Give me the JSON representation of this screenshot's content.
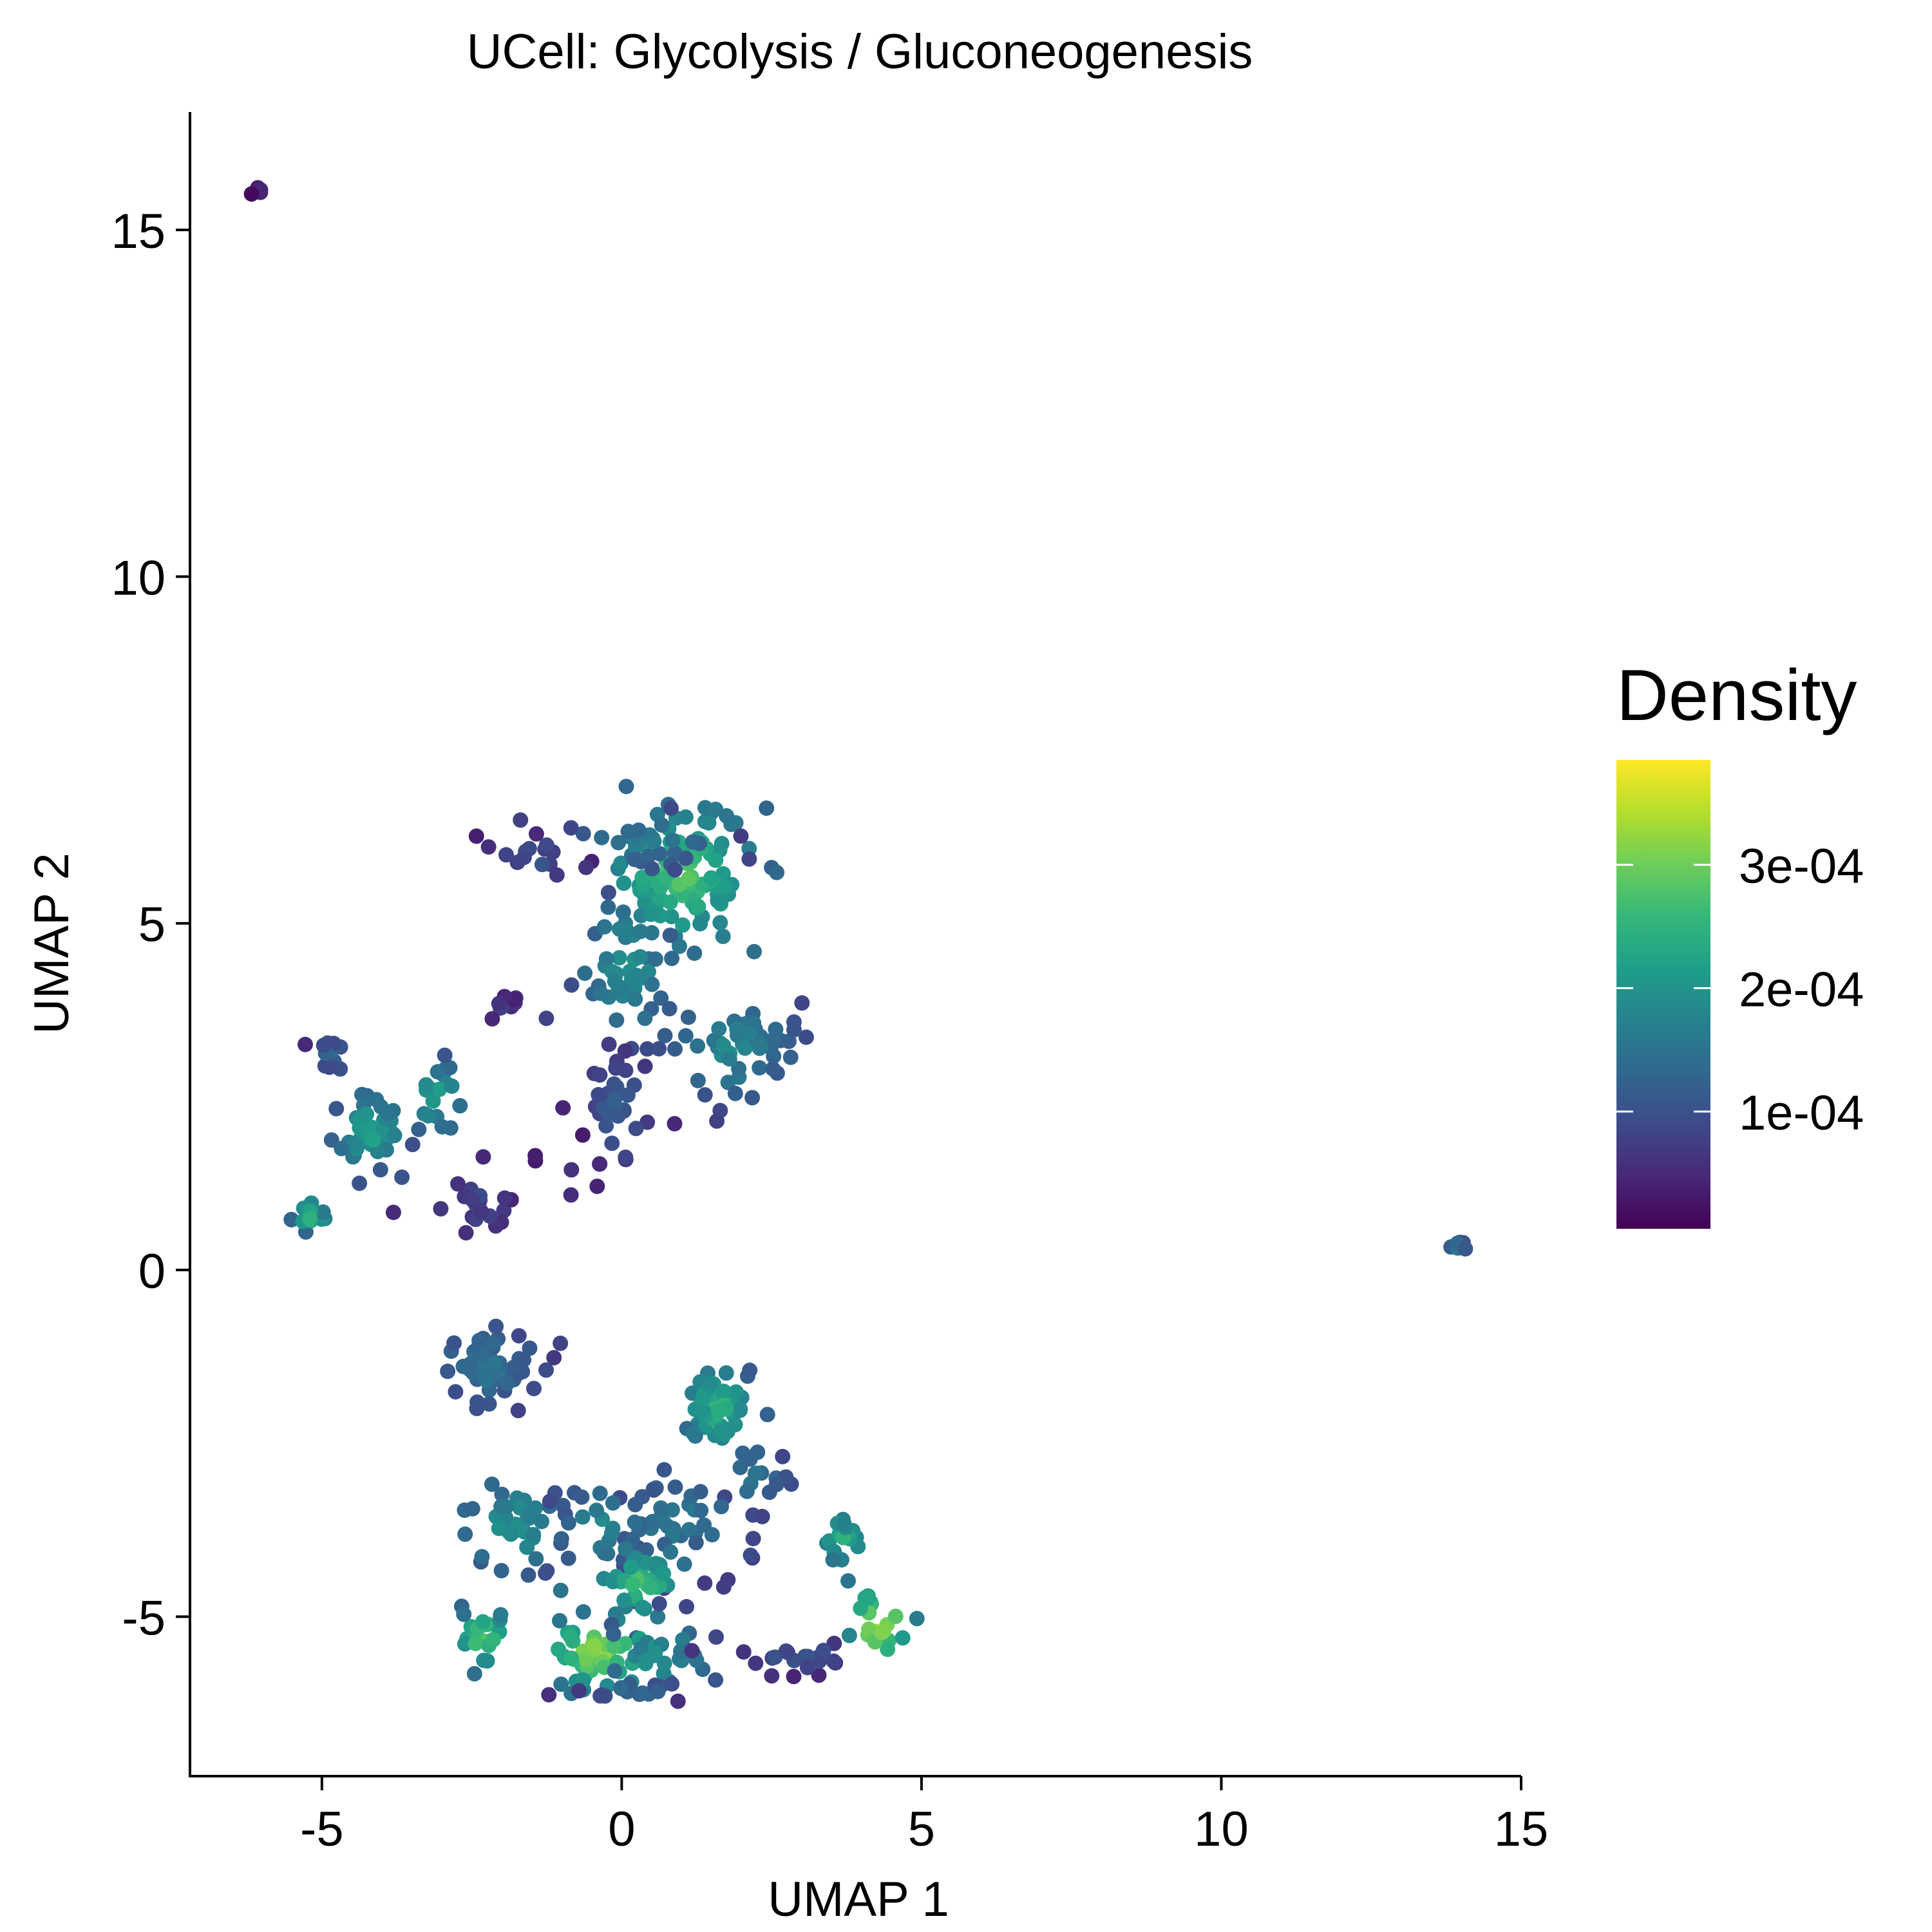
{
  "chart_data": {
    "type": "scatter",
    "title": "UCell: Glycolysis / Gluconeogenesis",
    "xlabel": "UMAP 1",
    "ylabel": "UMAP 2",
    "xlim": [
      -7.2,
      15
    ],
    "ylim": [
      -7.3,
      16.7
    ],
    "x_ticks": [
      {
        "value": -5,
        "label": "-5"
      },
      {
        "value": 0,
        "label": "0"
      },
      {
        "value": 5,
        "label": "5"
      },
      {
        "value": 10,
        "label": "10"
      },
      {
        "value": 15,
        "label": "15"
      }
    ],
    "y_ticks": [
      {
        "value": -5,
        "label": "-5"
      },
      {
        "value": 0,
        "label": "0"
      },
      {
        "value": 5,
        "label": "5"
      },
      {
        "value": 10,
        "label": "10"
      },
      {
        "value": 15,
        "label": "15"
      }
    ],
    "grid": false,
    "color_scale": {
      "title": "Density",
      "min": 5e-06,
      "max": 0.000385,
      "palette": [
        "#440154",
        "#482878",
        "#3E4A89",
        "#31688E",
        "#26828E",
        "#1F9E89",
        "#35B779",
        "#6DCD59",
        "#B4DE2C",
        "#FDE725"
      ],
      "ticks": [
        {
          "value": 0.0001,
          "label": "1e-04"
        },
        {
          "value": 0.0002,
          "label": "2e-04"
        },
        {
          "value": 0.0003,
          "label": "3e-04"
        }
      ],
      "legend_position": "right"
    },
    "clusters": [
      {
        "name": "top-left outlier",
        "cx": -6.05,
        "cy": 15.55,
        "sx": 0.06,
        "sy": 0.06,
        "n": 5,
        "density": 4e-05
      },
      {
        "name": "upper-center core",
        "cx": 1.0,
        "cy": 5.7,
        "sx": 0.6,
        "sy": 0.5,
        "n": 110,
        "density": 0.00029
      },
      {
        "name": "upper-center top",
        "cx": 0.4,
        "cy": 6.2,
        "sx": 0.6,
        "sy": 0.25,
        "n": 30,
        "density": 0.00017
      },
      {
        "name": "upper-center left tail",
        "cx": -1.4,
        "cy": 5.95,
        "sx": 0.4,
        "sy": 0.15,
        "n": 16,
        "density": 0.00011
      },
      {
        "name": "upper-center body",
        "cx": 0.1,
        "cy": 4.4,
        "sx": 0.4,
        "sy": 0.5,
        "n": 50,
        "density": 0.00021
      },
      {
        "name": "upper-center right lobe",
        "cx": 1.8,
        "cy": 3.2,
        "sx": 0.55,
        "sy": 0.4,
        "n": 55,
        "density": 0.00019
      },
      {
        "name": "upper-center lower tail",
        "cx": -0.1,
        "cy": 2.3,
        "sx": 0.3,
        "sy": 0.5,
        "n": 32,
        "density": 0.00012
      },
      {
        "name": "upper sparse lower",
        "cx": -0.9,
        "cy": 1.6,
        "sx": 0.35,
        "sy": 0.35,
        "n": 8,
        "density": 6e-05
      },
      {
        "name": "small cluster at (-2,3.9)",
        "cx": -2.0,
        "cy": 3.85,
        "sx": 0.15,
        "sy": 0.08,
        "n": 10,
        "density": 8e-05
      },
      {
        "name": "left cross center",
        "cx": -4.2,
        "cy": 2.0,
        "sx": 0.3,
        "sy": 0.25,
        "n": 50,
        "density": 0.00024
      },
      {
        "name": "left cross top arm",
        "cx": -4.85,
        "cy": 3.1,
        "sx": 0.15,
        "sy": 0.15,
        "n": 12,
        "density": 0.00014
      },
      {
        "name": "left cross right arm",
        "cx": -3.1,
        "cy": 2.5,
        "sx": 0.25,
        "sy": 0.25,
        "n": 20,
        "density": 0.00023
      },
      {
        "name": "left cross bottom arm",
        "cx": -5.2,
        "cy": 0.8,
        "sx": 0.15,
        "sy": 0.12,
        "n": 14,
        "density": 0.00026
      },
      {
        "name": "left lower small",
        "cx": -2.4,
        "cy": 1.0,
        "sx": 0.35,
        "sy": 0.2,
        "n": 22,
        "density": 9e-05
      },
      {
        "name": "lower-left cluster",
        "cx": -2.3,
        "cy": -1.4,
        "sx": 0.5,
        "sy": 0.3,
        "n": 55,
        "density": 0.00016
      },
      {
        "name": "lower-center ring",
        "cx": 1.6,
        "cy": -2.0,
        "sx": 0.3,
        "sy": 0.3,
        "n": 50,
        "density": 0.00026
      },
      {
        "name": "lower-center right",
        "cx": 2.2,
        "cy": -3.0,
        "sx": 0.3,
        "sy": 0.3,
        "n": 20,
        "density": 0.00016
      },
      {
        "name": "lower-center mid",
        "cx": 0.9,
        "cy": -3.6,
        "sx": 0.6,
        "sy": 0.35,
        "n": 45,
        "density": 0.00017
      },
      {
        "name": "lower-left arm",
        "cx": -1.8,
        "cy": -3.7,
        "sx": 0.45,
        "sy": 0.35,
        "n": 40,
        "density": 0.00021
      },
      {
        "name": "lower-mid connector",
        "cx": -0.3,
        "cy": -3.7,
        "sx": 0.4,
        "sy": 0.3,
        "n": 20,
        "density": 0.00019
      },
      {
        "name": "lower-bottom upper",
        "cx": 0.3,
        "cy": -4.5,
        "sx": 0.35,
        "sy": 0.25,
        "n": 40,
        "density": 0.00028
      },
      {
        "name": "lower-bottom hotspot",
        "cx": -0.4,
        "cy": -5.5,
        "sx": 0.4,
        "sy": 0.25,
        "n": 55,
        "density": 0.00034
      },
      {
        "name": "lower-bottom right",
        "cx": 0.6,
        "cy": -5.6,
        "sx": 0.45,
        "sy": 0.3,
        "n": 30,
        "density": 0.00021
      },
      {
        "name": "lower-bottom tail",
        "cx": 0.2,
        "cy": -6.05,
        "sx": 0.45,
        "sy": 0.1,
        "n": 15,
        "density": 0.00014
      },
      {
        "name": "bottom-left blob",
        "cx": -2.35,
        "cy": -5.3,
        "sx": 0.2,
        "sy": 0.2,
        "n": 20,
        "density": 0.00031
      },
      {
        "name": "bottom-right upper",
        "cx": 3.7,
        "cy": -3.9,
        "sx": 0.2,
        "sy": 0.2,
        "n": 18,
        "density": 0.00025
      },
      {
        "name": "bottom-right hotspot",
        "cx": 4.3,
        "cy": -5.1,
        "sx": 0.25,
        "sy": 0.25,
        "n": 22,
        "density": 0.00036
      },
      {
        "name": "bottom-right tail",
        "cx": 3.0,
        "cy": -5.6,
        "sx": 0.55,
        "sy": 0.12,
        "n": 20,
        "density": 0.00011
      },
      {
        "name": "right outlier",
        "cx": 13.95,
        "cy": 0.33,
        "sx": 0.07,
        "sy": 0.06,
        "n": 8,
        "density": 0.00016
      }
    ]
  }
}
